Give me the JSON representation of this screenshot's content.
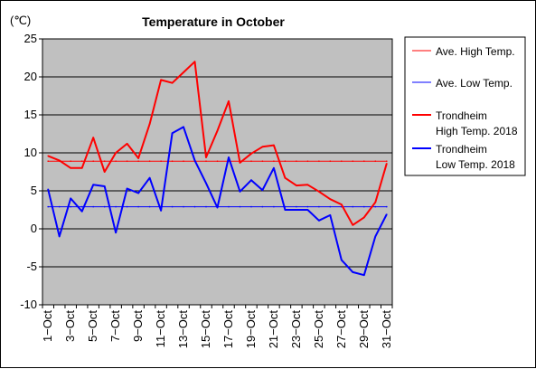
{
  "chart_data": {
    "type": "line",
    "title": "Temperature in October",
    "ylabel": "(℃)",
    "xlabel": "",
    "ylim": [
      -10,
      25
    ],
    "yticks": [
      "25",
      "20",
      "15",
      "10",
      "5",
      "0",
      "-5",
      "-10"
    ],
    "xticks": [
      "1−Oct",
      "3−Oct",
      "5−Oct",
      "7−Oct",
      "9−Oct",
      "11−Oct",
      "13−Oct",
      "15−Oct",
      "17−Oct",
      "19−Oct",
      "21−Oct",
      "23−Oct",
      "25−Oct",
      "27−Oct",
      "29−Oct",
      "31−Oct"
    ],
    "days": [
      1,
      2,
      3,
      4,
      5,
      6,
      7,
      8,
      9,
      10,
      11,
      12,
      13,
      14,
      15,
      16,
      17,
      18,
      19,
      20,
      21,
      22,
      23,
      24,
      25,
      26,
      27,
      28,
      29,
      30,
      31
    ],
    "grid": true,
    "plot_background": "#c0c0c0",
    "legend_position": "right",
    "series": [
      {
        "name": "Ave. High Temp.",
        "color": "#ff0000",
        "width": "thin",
        "values": [
          8.9,
          8.9,
          8.9,
          8.9,
          8.9,
          8.9,
          8.9,
          8.9,
          8.9,
          8.9,
          8.9,
          8.9,
          8.9,
          8.9,
          8.9,
          8.9,
          8.9,
          8.9,
          8.9,
          8.9,
          8.9,
          8.9,
          8.9,
          8.9,
          8.9,
          8.9,
          8.9,
          8.9,
          8.9,
          8.9,
          8.9
        ]
      },
      {
        "name": "Ave. Low Temp.",
        "color": "#0000ff",
        "width": "thin",
        "values": [
          2.9,
          2.9,
          2.9,
          2.9,
          2.9,
          2.9,
          2.9,
          2.9,
          2.9,
          2.9,
          2.9,
          2.9,
          2.9,
          2.9,
          2.9,
          2.9,
          2.9,
          2.9,
          2.9,
          2.9,
          2.9,
          2.9,
          2.9,
          2.9,
          2.9,
          2.9,
          2.9,
          2.9,
          2.9,
          2.9,
          2.9
        ]
      },
      {
        "name": "Trondheim High Temp. 2018",
        "name_lines": [
          "Trondheim",
          "High Temp. 2018"
        ],
        "color": "#ff0000",
        "width": "thick",
        "values": [
          9.6,
          9.0,
          8.0,
          8.0,
          12.0,
          7.5,
          10.0,
          11.2,
          9.3,
          13.8,
          19.6,
          19.2,
          20.6,
          22.0,
          9.4,
          12.9,
          16.8,
          8.7,
          9.9,
          10.8,
          11.0,
          6.7,
          5.7,
          5.8,
          4.9,
          3.9,
          3.2,
          0.5,
          1.5,
          3.5,
          8.6
        ]
      },
      {
        "name": "Trondheim Low Temp. 2018",
        "name_lines": [
          "Trondheim",
          "Low Temp. 2018"
        ],
        "color": "#0000ff",
        "width": "thick",
        "values": [
          5.2,
          -1.0,
          4.0,
          2.3,
          5.8,
          5.6,
          -0.5,
          5.3,
          4.7,
          6.7,
          2.4,
          12.6,
          13.4,
          9.0,
          6.0,
          2.8,
          9.4,
          4.9,
          6.4,
          5.1,
          8.0,
          2.5,
          2.5,
          2.5,
          1.1,
          1.8,
          -4.1,
          -5.7,
          -6.1,
          -1.0,
          1.9
        ]
      }
    ]
  }
}
